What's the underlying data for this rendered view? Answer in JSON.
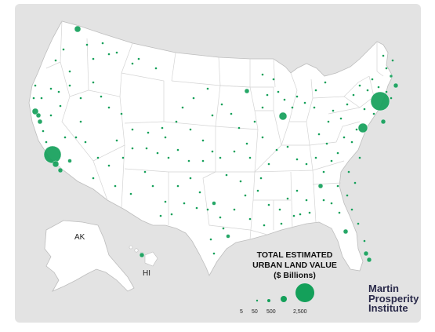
{
  "map": {
    "state_labels": {
      "alaska": "AK",
      "hawaii": "HI"
    },
    "land_color": "#ffffff",
    "background_color": "#e3e3e3",
    "border_color": "#cfcfcf",
    "marker_color": "#14a05a"
  },
  "legend": {
    "title_lines": [
      "TOTAL ESTIMATED",
      "URBAN LAND VALUE",
      "($ Billions)"
    ],
    "values": [
      "5",
      "50",
      "500",
      "2,500"
    ]
  },
  "logo": {
    "lines": [
      "Martin",
      "Prosperity",
      "Institute"
    ]
  }
}
